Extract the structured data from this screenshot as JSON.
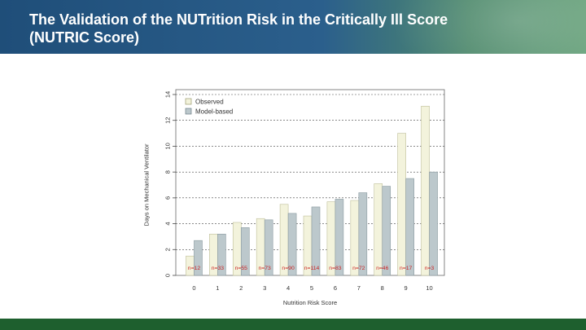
{
  "slide": {
    "title_line1": "The Validation of the NUTrition Risk in the Critically Ill Score",
    "title_line2": "(NUTRIC Score)"
  },
  "colors": {
    "header": "#1f4e79",
    "footer": "#1e5f2e",
    "observed": "#f3f3dc",
    "model": "#bcc8cc",
    "n_label": "#cc2222"
  },
  "chart_data": {
    "type": "bar",
    "xlabel": "Nutrition Risk Score",
    "ylabel": "Days on Mechanical Ventilator",
    "ylim": [
      0,
      14
    ],
    "yticks": [
      0,
      2,
      4,
      6,
      8,
      10,
      12,
      14
    ],
    "grid": true,
    "legend_position": "top-left",
    "categories": [
      "0",
      "1",
      "2",
      "3",
      "4",
      "5",
      "6",
      "7",
      "8",
      "9",
      "10"
    ],
    "n_labels": [
      "n=12",
      "n=33",
      "n=55",
      "n=73",
      "n=90",
      "n=114",
      "n=83",
      "n=72",
      "n=46",
      "n=17",
      "n=3"
    ],
    "series": [
      {
        "name": "Observed",
        "values": [
          1.5,
          3.2,
          4.1,
          4.4,
          5.5,
          4.6,
          5.7,
          5.8,
          7.1,
          11.0,
          13.1
        ]
      },
      {
        "name": "Model-based",
        "values": [
          2.7,
          3.2,
          3.7,
          4.3,
          4.8,
          5.3,
          5.9,
          6.4,
          6.9,
          7.5,
          8.0
        ]
      }
    ]
  }
}
